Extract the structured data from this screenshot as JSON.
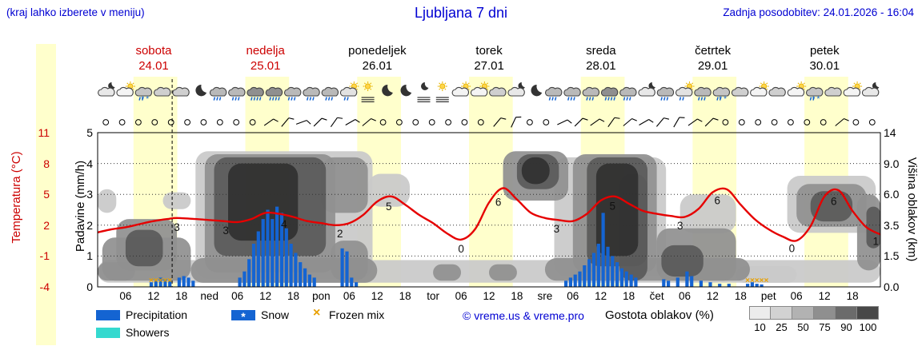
{
  "colors": {
    "daylight": "#ffffcc",
    "precipitation": "#1464d2",
    "showers": "#35d9cf",
    "frozen": "#e8a000",
    "temperature": "#e60000",
    "header_blue": "#0000d2",
    "weekend_red": "#cc0000",
    "cloud": {
      "light": "#c9c9c9",
      "mid": "#909090",
      "dark": "#5a5a5a",
      "darkest": "#303030"
    },
    "cloud_scale": [
      "#ececec",
      "#d2d2d2",
      "#b2b2b2",
      "#8f8f8f",
      "#6b6b6b",
      "#484848"
    ]
  },
  "header": {
    "hint": "(kraj lahko izberete v meniju)",
    "title": "Ljubljana 7 dni",
    "updated": "Zadnja posodobitev: 24.01.2026 - 16:04"
  },
  "days": [
    {
      "name": "sobota",
      "date": "24.01",
      "weekend": true
    },
    {
      "name": "nedelja",
      "date": "25.01",
      "weekend": true
    },
    {
      "name": "ponedeljek",
      "date": "26.01",
      "weekend": false
    },
    {
      "name": "torek",
      "date": "27.01",
      "weekend": false
    },
    {
      "name": "sreda",
      "date": "28.01",
      "weekend": false
    },
    {
      "name": "četrtek",
      "date": "29.01",
      "weekend": false
    },
    {
      "name": "petek",
      "date": "30.01",
      "weekend": false
    }
  ],
  "legend": {
    "precipitation": "Precipitation",
    "snow": "Snow",
    "snow_mark": "*",
    "frozen": "Frozen mix",
    "frozen_mark": "×",
    "showers": "Showers",
    "credit": "© vreme.us & vreme.pro",
    "cloud_density_label": "Gostota oblakov (%)",
    "cloud_density_values": [
      "10",
      "25",
      "50",
      "75",
      "90",
      "100"
    ]
  },
  "chart_data": {
    "type": "meteogram",
    "title": "Ljubljana 7 dni",
    "hours": 168,
    "current_time_h": 16,
    "axes": {
      "temperature_label": "Temperatura (°C)",
      "temperature_ticks": [
        "11",
        "8",
        "5",
        "2",
        "-1",
        "-4"
      ],
      "precipitation_label": "Padavine (mm/h)",
      "precipitation_ticks": [
        "5",
        "4",
        "3",
        "2",
        "1",
        "0"
      ],
      "cloud_height_label": "Višina oblakov (km)",
      "cloud_height_ticks": [
        "14",
        "9.0",
        "6.0",
        "3.5",
        "1.5",
        "0.0"
      ],
      "x_labels": [
        [
          6,
          "06"
        ],
        [
          12,
          "12"
        ],
        [
          18,
          "18"
        ],
        [
          24,
          "ned"
        ],
        [
          30,
          "06"
        ],
        [
          36,
          "12"
        ],
        [
          42,
          "18"
        ],
        [
          48,
          "pon"
        ],
        [
          54,
          "06"
        ],
        [
          60,
          "12"
        ],
        [
          66,
          "18"
        ],
        [
          72,
          "tor"
        ],
        [
          78,
          "06"
        ],
        [
          84,
          "12"
        ],
        [
          90,
          "18"
        ],
        [
          96,
          "sre"
        ],
        [
          102,
          "06"
        ],
        [
          108,
          "12"
        ],
        [
          114,
          "18"
        ],
        [
          120,
          "čet"
        ],
        [
          126,
          "06"
        ],
        [
          132,
          "12"
        ],
        [
          138,
          "18"
        ],
        [
          144,
          "pet"
        ],
        [
          150,
          "06"
        ],
        [
          156,
          "12"
        ],
        [
          162,
          "18"
        ]
      ]
    },
    "daylight_bands": [
      [
        7.7,
        17.1
      ],
      [
        31.7,
        41.1
      ],
      [
        55.7,
        65.1
      ],
      [
        79.7,
        89.1
      ],
      [
        103.7,
        113.1
      ],
      [
        127.7,
        137.1
      ],
      [
        151.7,
        161.1
      ]
    ],
    "temperature": [
      [
        0,
        1.3
      ],
      [
        3,
        1.6
      ],
      [
        6,
        1.8
      ],
      [
        9,
        2.1
      ],
      [
        12,
        2.4
      ],
      [
        15,
        2.6
      ],
      [
        17,
        2.7
      ],
      [
        21,
        2.6
      ],
      [
        24,
        2.5
      ],
      [
        27,
        2.4
      ],
      [
        30,
        2.3
      ],
      [
        33,
        2.6
      ],
      [
        36,
        3.2
      ],
      [
        39,
        3.1
      ],
      [
        42,
        2.8
      ],
      [
        45,
        2.4
      ],
      [
        48,
        2.2
      ],
      [
        51,
        2.0
      ],
      [
        54,
        2.2
      ],
      [
        57,
        3.0
      ],
      [
        60,
        4.3
      ],
      [
        63,
        4.8
      ],
      [
        66,
        4.0
      ],
      [
        69,
        3.0
      ],
      [
        72,
        2.2
      ],
      [
        75,
        1.2
      ],
      [
        78,
        0.6
      ],
      [
        81,
        1.6
      ],
      [
        84,
        4.2
      ],
      [
        87,
        5.6
      ],
      [
        90,
        4.5
      ],
      [
        93,
        3.2
      ],
      [
        96,
        2.7
      ],
      [
        99,
        2.5
      ],
      [
        102,
        2.4
      ],
      [
        105,
        3.1
      ],
      [
        108,
        4.4
      ],
      [
        111,
        4.8
      ],
      [
        114,
        4.1
      ],
      [
        117,
        3.4
      ],
      [
        120,
        3.1
      ],
      [
        123,
        2.9
      ],
      [
        126,
        2.8
      ],
      [
        129,
        3.6
      ],
      [
        132,
        5.2
      ],
      [
        135,
        5.5
      ],
      [
        138,
        4.0
      ],
      [
        141,
        2.6
      ],
      [
        144,
        1.6
      ],
      [
        147,
        0.9
      ],
      [
        150,
        0.5
      ],
      [
        153,
        1.9
      ],
      [
        156,
        4.8
      ],
      [
        159,
        5.4
      ],
      [
        162,
        3.4
      ],
      [
        165,
        1.8
      ],
      [
        168,
        1.1
      ]
    ],
    "temp_labels": [
      [
        17,
        "3"
      ],
      [
        27.5,
        "3"
      ],
      [
        40,
        "4"
      ],
      [
        52,
        "2"
      ],
      [
        62.5,
        "5"
      ],
      [
        78,
        "0"
      ],
      [
        86,
        "6"
      ],
      [
        98.5,
        "3"
      ],
      [
        110.5,
        "5"
      ],
      [
        125,
        "3"
      ],
      [
        133,
        "6"
      ],
      [
        149,
        "0"
      ],
      [
        158,
        "6"
      ],
      [
        167,
        "1"
      ]
    ],
    "precipitation": [
      [
        11,
        0.15
      ],
      [
        12,
        0.2
      ],
      [
        13,
        0.3
      ],
      [
        14,
        0.25
      ],
      [
        15,
        0.2
      ],
      [
        17,
        0.3
      ],
      [
        18,
        0.35
      ],
      [
        19,
        0.3
      ],
      [
        20,
        0.2
      ],
      [
        30,
        0.3
      ],
      [
        31,
        0.5
      ],
      [
        32,
        0.9
      ],
      [
        33,
        1.4
      ],
      [
        34,
        1.8
      ],
      [
        35,
        2.2
      ],
      [
        36,
        2.5
      ],
      [
        37,
        2.2
      ],
      [
        38,
        2.6
      ],
      [
        39,
        2.4
      ],
      [
        40,
        1.9
      ],
      [
        41,
        1.4
      ],
      [
        42,
        1.1
      ],
      [
        43,
        0.8
      ],
      [
        44,
        0.6
      ],
      [
        45,
        0.4
      ],
      [
        46,
        0.3
      ],
      [
        52,
        1.25
      ],
      [
        53,
        1.15
      ],
      [
        54,
        0.3
      ],
      [
        55,
        0.15
      ],
      [
        100,
        0.2
      ],
      [
        101,
        0.3
      ],
      [
        102,
        0.4
      ],
      [
        103,
        0.5
      ],
      [
        104,
        0.7
      ],
      [
        105,
        0.9
      ],
      [
        106,
        1.1
      ],
      [
        107,
        1.4
      ],
      [
        108,
        2.4
      ],
      [
        109,
        1.3
      ],
      [
        110,
        1.0
      ],
      [
        111,
        0.8
      ],
      [
        112,
        0.6
      ],
      [
        113,
        0.5
      ],
      [
        114,
        0.4
      ],
      [
        115,
        0.3
      ],
      [
        121,
        0.25
      ],
      [
        122,
        0.2
      ],
      [
        124,
        0.3
      ],
      [
        126,
        0.5
      ],
      [
        127,
        0.35
      ],
      [
        129,
        0.2
      ],
      [
        131,
        0.15
      ],
      [
        133,
        0.1
      ],
      [
        135,
        0.1
      ],
      [
        139,
        0.1
      ],
      [
        140,
        0.15
      ],
      [
        141,
        0.1
      ],
      [
        142,
        0.08
      ]
    ],
    "frozen_mix_hours": [
      11,
      12,
      13,
      14,
      15,
      139,
      140,
      141,
      142,
      143
    ],
    "clouds": [
      [
        0,
        168,
        0.2,
        1.3,
        "light"
      ],
      [
        0,
        8,
        0.3,
        1.2,
        "mid"
      ],
      [
        20,
        60,
        0.2,
        1.4,
        "mid"
      ],
      [
        96,
        140,
        0.3,
        1.4,
        "mid"
      ],
      [
        72,
        78,
        0.3,
        1.1,
        "mid"
      ],
      [
        84,
        90,
        0.3,
        1.1,
        "mid"
      ],
      [
        1,
        20,
        0.3,
        2.7,
        "mid"
      ],
      [
        4,
        17,
        0.8,
        4.0,
        "mid"
      ],
      [
        6,
        14,
        1.0,
        3.2,
        "dark"
      ],
      [
        0,
        4,
        4.5,
        6.5,
        "light"
      ],
      [
        14,
        20,
        4.8,
        6.2,
        "light"
      ],
      [
        21,
        59,
        0.4,
        11,
        "light"
      ],
      [
        23,
        51,
        0.7,
        10.5,
        "mid"
      ],
      [
        25,
        49,
        1.5,
        10,
        "dark"
      ],
      [
        28,
        43,
        2.5,
        9,
        "darkest"
      ],
      [
        48,
        58,
        4.5,
        10,
        "mid"
      ],
      [
        50,
        58,
        0.3,
        2.5,
        "mid"
      ],
      [
        58,
        67,
        5,
        8,
        "light"
      ],
      [
        87,
        101,
        5.5,
        11,
        "mid"
      ],
      [
        90,
        99,
        6.5,
        10.5,
        "dark"
      ],
      [
        91,
        97,
        7,
        10,
        "darkest"
      ],
      [
        98,
        122,
        0.5,
        10,
        "light"
      ],
      [
        102,
        120,
        0.7,
        10.5,
        "mid"
      ],
      [
        105,
        118,
        1,
        10,
        "dark"
      ],
      [
        107,
        116,
        1.5,
        9,
        "darkest"
      ],
      [
        112,
        118,
        0.3,
        8,
        "dark"
      ],
      [
        120,
        137,
        0.3,
        3.3,
        "mid"
      ],
      [
        121,
        130,
        0.5,
        2.2,
        "dark"
      ],
      [
        125,
        137,
        3,
        6,
        "light"
      ],
      [
        137,
        150,
        0.2,
        1.0,
        "light"
      ],
      [
        148,
        167,
        3,
        7.8,
        "light"
      ],
      [
        150,
        165,
        3.4,
        7,
        "mid"
      ],
      [
        153,
        162,
        3.8,
        6.3,
        "dark"
      ],
      [
        163,
        168,
        0.8,
        6,
        "mid"
      ],
      [
        165,
        168,
        2,
        5,
        "dark"
      ]
    ],
    "icons": [
      "moon-cloud",
      "sun-cloud",
      "sleet",
      "cloud",
      "cloud",
      "moon",
      "rain",
      "rain",
      "heavy-rain",
      "heavy-rain",
      "rain",
      "rain",
      "rain",
      "sun-cloud-rain",
      "fog-sun",
      "moon",
      "moon",
      "fog-moon",
      "fog-sun",
      "sun-cloud",
      "sun-cloud",
      "cloud",
      "moon-cloud",
      "moon",
      "rain",
      "rain",
      "rain",
      "heavy-rain",
      "rain",
      "moon-cloud",
      "rain",
      "sun-cloud-rain",
      "rain",
      "sleet",
      "cloud",
      "sun-cloud",
      "cloud",
      "sun-cloud",
      "sleet",
      "cloud",
      "sun-cloud",
      "moon-cloud"
    ],
    "wind": [
      "o",
      "o",
      "o",
      "o",
      "o",
      "o",
      "o",
      "o",
      "o",
      "o",
      55,
      40,
      70,
      45,
      35,
      60,
      50,
      "o",
      "o",
      "o",
      "o",
      "o",
      "o",
      "o",
      40,
      25,
      "o",
      "o",
      65,
      45,
      55,
      35,
      50,
      60,
      40,
      30,
      55,
      45,
      "o",
      "o",
      "o",
      "o",
      "o",
      "o",
      "o",
      50,
      "o",
      "o"
    ]
  }
}
